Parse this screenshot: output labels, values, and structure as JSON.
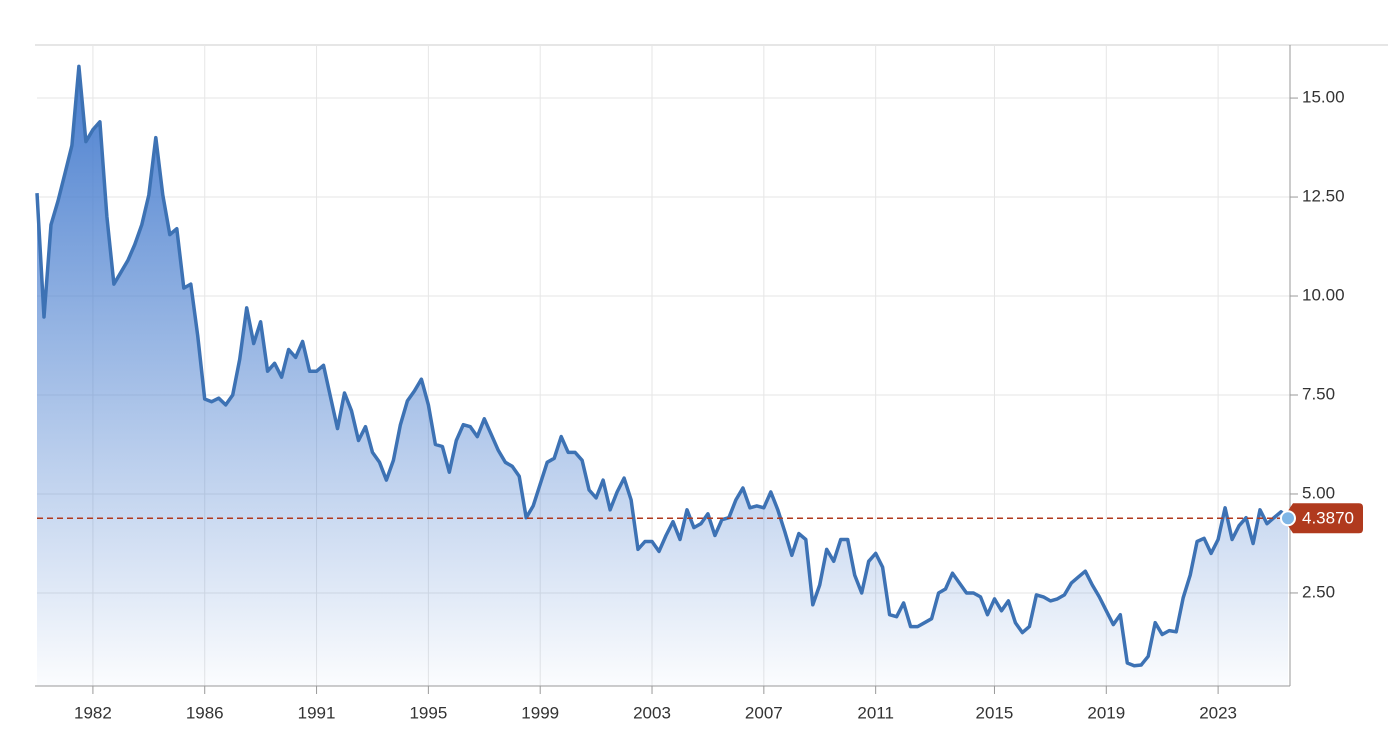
{
  "chart_data": {
    "type": "area",
    "categories": [
      null,
      null,
      null,
      null,
      null,
      null,
      null,
      null,
      "1982",
      null,
      null,
      null,
      null,
      null,
      null,
      null,
      null,
      null,
      null,
      null,
      null,
      null,
      null,
      null,
      "1986",
      null,
      null,
      null,
      null,
      null,
      null,
      null,
      null,
      null,
      null,
      null,
      null,
      null,
      null,
      null,
      "1991",
      null,
      null,
      null,
      null,
      null,
      null,
      null,
      null,
      null,
      null,
      null,
      null,
      null,
      null,
      null,
      "1995",
      null,
      null,
      null,
      null,
      null,
      null,
      null,
      null,
      null,
      null,
      null,
      null,
      null,
      null,
      null,
      "1999",
      null,
      null,
      null,
      null,
      null,
      null,
      null,
      null,
      null,
      null,
      null,
      null,
      null,
      null,
      null,
      "2003",
      null,
      null,
      null,
      null,
      null,
      null,
      null,
      null,
      null,
      null,
      null,
      null,
      null,
      null,
      null,
      "2007",
      null,
      null,
      null,
      null,
      null,
      null,
      null,
      null,
      null,
      null,
      null,
      null,
      null,
      null,
      null,
      "2011",
      null,
      null,
      null,
      null,
      null,
      null,
      null,
      null,
      null,
      null,
      null,
      null,
      null,
      null,
      null,
      null,
      "2015",
      null,
      null,
      null,
      null,
      null,
      null,
      null,
      null,
      null,
      null,
      null,
      null,
      null,
      null,
      null,
      "2019",
      null,
      null,
      null,
      null,
      null,
      null,
      null,
      null,
      null,
      null,
      null,
      null,
      null,
      null,
      null,
      "2023",
      null,
      null,
      null,
      null,
      null,
      null,
      null,
      null,
      null,
      null
    ],
    "series": [
      {
        "color": "#3d72b4",
        "values": [
          12.6,
          9.47,
          11.8,
          12.4,
          13.1,
          13.8,
          15.8,
          13.9,
          14.2,
          14.4,
          12.0,
          10.3,
          10.6,
          10.9,
          11.3,
          11.8,
          12.55,
          14.0,
          12.55,
          11.55,
          11.7,
          10.2,
          10.3,
          9.0,
          7.4,
          7.33,
          7.42,
          7.25,
          7.5,
          8.4,
          9.7,
          8.8,
          9.35,
          8.1,
          8.3,
          7.95,
          8.65,
          8.45,
          8.85,
          8.1,
          8.1,
          8.25,
          7.45,
          6.65,
          7.55,
          7.1,
          6.35,
          6.7,
          6.05,
          5.8,
          5.35,
          5.85,
          6.75,
          7.35,
          7.6,
          7.9,
          7.25,
          6.25,
          6.2,
          5.55,
          6.35,
          6.75,
          6.7,
          6.45,
          6.9,
          6.5,
          6.1,
          5.8,
          5.7,
          5.45,
          4.4,
          4.7,
          5.25,
          5.8,
          5.9,
          6.45,
          6.05,
          6.05,
          5.85,
          5.1,
          4.9,
          5.35,
          4.6,
          5.05,
          5.4,
          4.85,
          3.6,
          3.8,
          3.8,
          3.55,
          3.95,
          4.3,
          3.85,
          4.6,
          4.15,
          4.25,
          4.5,
          3.95,
          4.35,
          4.4,
          4.85,
          5.15,
          4.65,
          4.7,
          4.65,
          5.05,
          4.6,
          4.05,
          3.45,
          4.0,
          3.85,
          2.2,
          2.7,
          3.6,
          3.3,
          3.85,
          3.85,
          2.95,
          2.5,
          3.3,
          3.5,
          3.15,
          1.95,
          1.9,
          2.25,
          1.65,
          1.65,
          1.75,
          1.85,
          2.5,
          2.6,
          3.0,
          2.75,
          2.5,
          2.5,
          2.4,
          1.95,
          2.35,
          2.05,
          2.3,
          1.75,
          1.5,
          1.65,
          2.45,
          2.4,
          2.3,
          2.35,
          2.45,
          2.75,
          2.9,
          3.05,
          2.7,
          2.4,
          2.05,
          1.7,
          1.95,
          0.73,
          0.66,
          0.68,
          0.9,
          1.75,
          1.45,
          1.55,
          1.52,
          2.38,
          2.95,
          3.8,
          3.88,
          3.5,
          3.85,
          4.65,
          3.85,
          4.2,
          4.4,
          3.75,
          4.6,
          4.25,
          4.4,
          4.55,
          4.387
        ],
        "value_labels": [
          null,
          null,
          null,
          null,
          null,
          null,
          null,
          null,
          null,
          null,
          null,
          null,
          null,
          null,
          null,
          null,
          null,
          null,
          null,
          null,
          null,
          null,
          null,
          null,
          null,
          null,
          null,
          null,
          null,
          null,
          null,
          null,
          null,
          null,
          null,
          null,
          null,
          null,
          null,
          null,
          null,
          null,
          null,
          null,
          null,
          null,
          null,
          null,
          null,
          null,
          null,
          null,
          null,
          null,
          null,
          null,
          null,
          null,
          null,
          null,
          null,
          null,
          null,
          null,
          null,
          null,
          null,
          null,
          null,
          null,
          null,
          null,
          null,
          null,
          null,
          null,
          null,
          null,
          null,
          null,
          null,
          null,
          null,
          null,
          null,
          null,
          null,
          null,
          null,
          null,
          null,
          null,
          null,
          null,
          null,
          null,
          null,
          null,
          null,
          null,
          null,
          null,
          null,
          null,
          null,
          null,
          null,
          null,
          null,
          null,
          null,
          null,
          null,
          null,
          null,
          null,
          null,
          null,
          null,
          null,
          null,
          null,
          null,
          null,
          null,
          null,
          null,
          null,
          null,
          null,
          null,
          null,
          null,
          null,
          null,
          null,
          null,
          null,
          null,
          null,
          null,
          null,
          null,
          null,
          null,
          null,
          null,
          null,
          null,
          null,
          null,
          null,
          null,
          null,
          null,
          null,
          null,
          null,
          null,
          null,
          null,
          null,
          null,
          null,
          null,
          null,
          null,
          null,
          null,
          null,
          null,
          null,
          null,
          null,
          null,
          null,
          null,
          null,
          null,
          "4.3870"
        ]
      }
    ],
    "ylim": [
      0.15,
      16.34
    ],
    "yticks": [
      {
        "value": 2.5,
        "label": "2.50"
      },
      {
        "value": 5,
        "label": "5.00"
      },
      {
        "value": 7.5,
        "label": "7.50"
      },
      {
        "value": 10,
        "label": "10.00"
      },
      {
        "value": 12.5,
        "label": "12.50"
      },
      {
        "value": 15,
        "label": "15.00"
      }
    ],
    "grid": true,
    "label_color": "#b03a1e",
    "marker_color": "#7fb6e6"
  }
}
